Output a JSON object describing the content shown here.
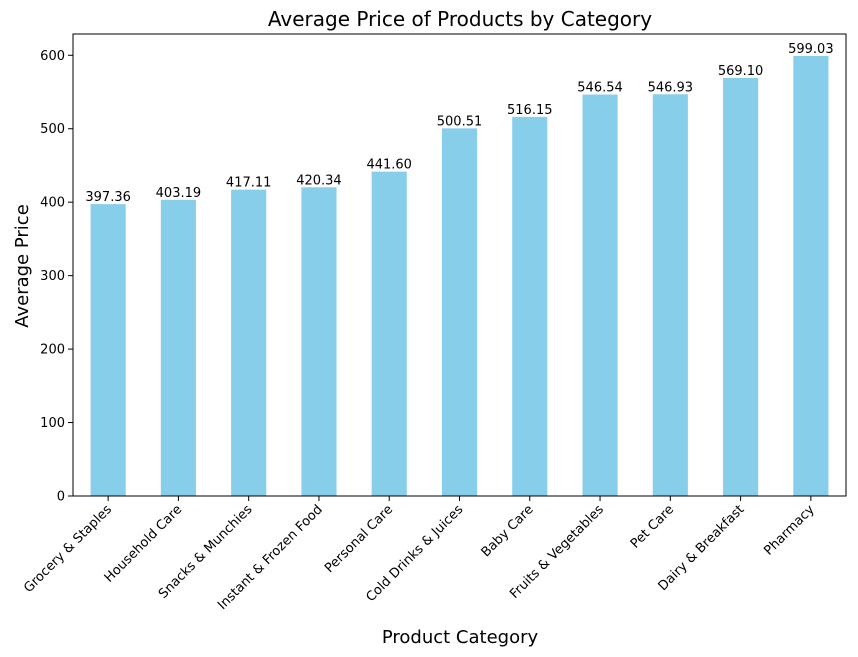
{
  "chart_data": {
    "type": "bar",
    "title": "Average Price of Products by Category",
    "xlabel": "Product Category",
    "ylabel": "Average Price",
    "categories": [
      "Grocery & Staples",
      "Household Care",
      "Snacks & Munchies",
      "Instant & Frozen Food",
      "Personal Care",
      "Cold Drinks & Juices",
      "Baby Care",
      "Fruits & Vegetables",
      "Pet Care",
      "Dairy & Breakfast",
      "Pharmacy"
    ],
    "values": [
      397.36,
      403.19,
      417.11,
      420.34,
      441.6,
      500.51,
      516.15,
      546.54,
      546.93,
      569.1,
      599.03
    ],
    "value_labels": [
      "397.36",
      "403.19",
      "417.11",
      "420.34",
      "441.60",
      "500.51",
      "516.15",
      "546.54",
      "546.93",
      "569.10",
      "599.03"
    ],
    "ylim": [
      0,
      628.98
    ],
    "yticks": [
      0,
      100,
      200,
      300,
      400,
      500,
      600
    ],
    "bar_color": "#87ceeb",
    "grid": false,
    "legend": "none"
  }
}
